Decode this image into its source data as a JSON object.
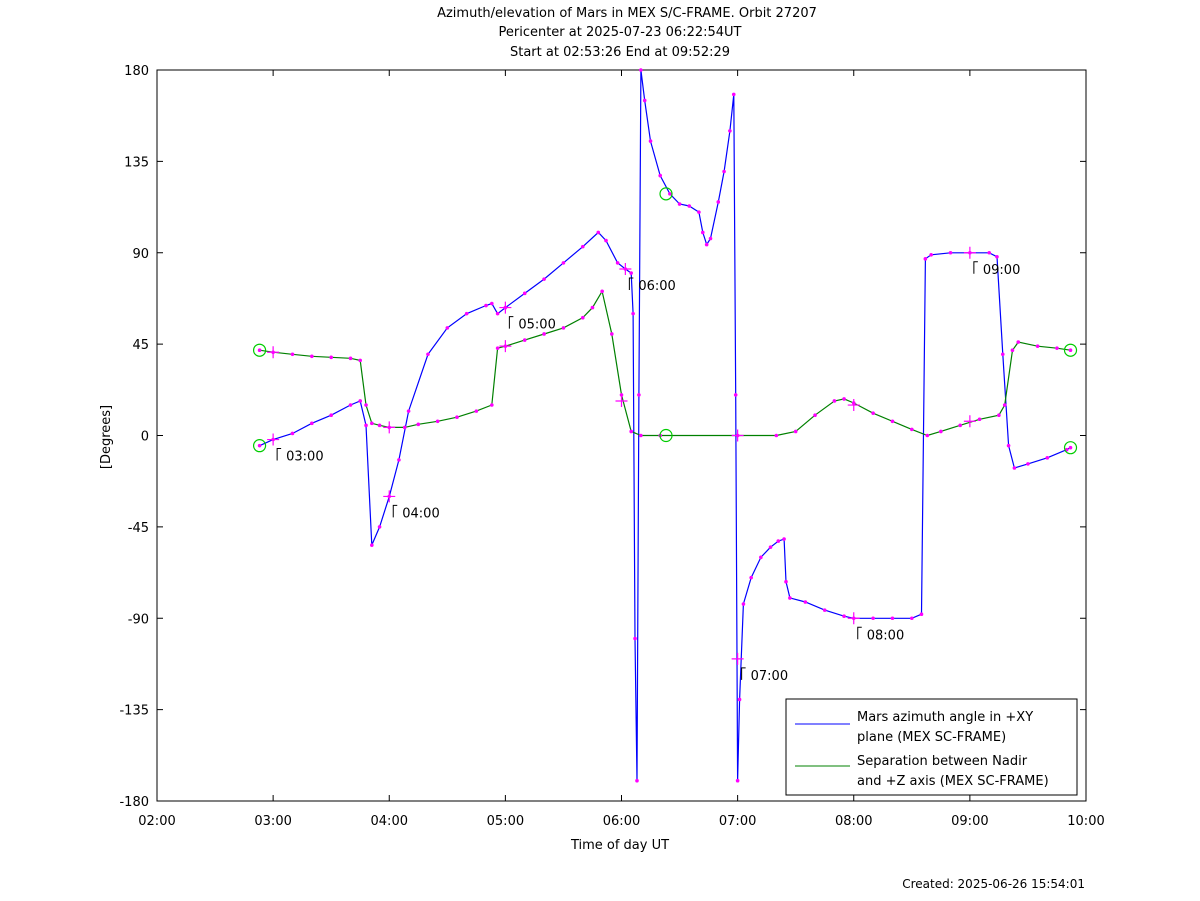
{
  "chart_data": {
    "type": "line",
    "title_lines": [
      "Azimuth/elevation of Mars in MEX S/C-FRAME.  Orbit 27207",
      "Pericenter at 2025-07-23 06:22:54UT",
      "Start at 02:53:26 End at 09:52:29"
    ],
    "xlabel": "Time of day UT",
    "ylabel": "[Degrees]",
    "footer": "Created: 2025-06-26 15:54:01",
    "xlim": [
      "02:00",
      "10:00"
    ],
    "ylim": [
      -180,
      180
    ],
    "xticks": [
      "02:00",
      "03:00",
      "04:00",
      "05:00",
      "06:00",
      "07:00",
      "08:00",
      "09:00",
      "10:00"
    ],
    "yticks": [
      180,
      135,
      90,
      45,
      0,
      -45,
      -90,
      -135,
      -180
    ],
    "colors": {
      "series1": "#0000ff",
      "series2": "#008000",
      "marker": "#ff00ff",
      "circle": "#00cc00"
    },
    "legend_position": "bottom-right",
    "series": [
      {
        "name": "Mars azimuth angle in +XY plane (MEX SC-FRAME)",
        "legend_lines": [
          "Mars azimuth angle in +XY",
          "plane (MEX SC-FRAME)"
        ],
        "points": [
          [
            "02:53",
            -5
          ],
          [
            "03:00",
            -2
          ],
          [
            "03:10",
            1
          ],
          [
            "03:20",
            6
          ],
          [
            "03:30",
            10
          ],
          [
            "03:40",
            15
          ],
          [
            "03:45",
            17
          ],
          [
            "03:48",
            5
          ],
          [
            "03:51",
            -54
          ],
          [
            "03:55",
            -45
          ],
          [
            "04:00",
            -30
          ],
          [
            "04:05",
            -12
          ],
          [
            "04:10",
            12
          ],
          [
            "04:20",
            40
          ],
          [
            "04:30",
            53
          ],
          [
            "04:40",
            60
          ],
          [
            "04:50",
            64
          ],
          [
            "04:53",
            65
          ],
          [
            "04:56",
            60
          ],
          [
            "05:00",
            63
          ],
          [
            "05:10",
            70
          ],
          [
            "05:20",
            77
          ],
          [
            "05:30",
            85
          ],
          [
            "05:40",
            93
          ],
          [
            "05:48",
            100
          ],
          [
            "05:52",
            96
          ],
          [
            "05:58",
            85
          ],
          [
            "06:02",
            82
          ],
          [
            "06:05",
            80
          ],
          [
            "06:06",
            60
          ],
          [
            "06:07",
            -100
          ],
          [
            "06:08",
            -170
          ],
          [
            "06:09",
            20
          ],
          [
            "06:10",
            180
          ],
          [
            "06:12",
            165
          ],
          [
            "06:15",
            145
          ],
          [
            "06:20",
            128
          ],
          [
            "06:25",
            119
          ],
          [
            "06:30",
            114
          ],
          [
            "06:35",
            113
          ],
          [
            "06:40",
            110
          ],
          [
            "06:42",
            100
          ],
          [
            "06:44",
            94
          ],
          [
            "06:46",
            97
          ],
          [
            "06:50",
            115
          ],
          [
            "06:53",
            130
          ],
          [
            "06:56",
            150
          ],
          [
            "06:58",
            168
          ],
          [
            "06:59",
            20
          ],
          [
            "07:00",
            -170
          ],
          [
            "07:01",
            -130
          ],
          [
            "07:03",
            -83
          ],
          [
            "07:07",
            -70
          ],
          [
            "07:12",
            -60
          ],
          [
            "07:17",
            -55
          ],
          [
            "07:21",
            -52
          ],
          [
            "07:24",
            -51
          ],
          [
            "07:25",
            -72
          ],
          [
            "07:27",
            -80
          ],
          [
            "07:35",
            -82
          ],
          [
            "07:45",
            -86
          ],
          [
            "07:55",
            -89
          ],
          [
            "08:00",
            -90
          ],
          [
            "08:10",
            -90
          ],
          [
            "08:20",
            -90
          ],
          [
            "08:30",
            -90
          ],
          [
            "08:35",
            -88
          ],
          [
            "08:37",
            87
          ],
          [
            "08:40",
            89
          ],
          [
            "08:50",
            90
          ],
          [
            "09:00",
            90
          ],
          [
            "09:10",
            90
          ],
          [
            "09:14",
            88
          ],
          [
            "09:17",
            40
          ],
          [
            "09:20",
            -5
          ],
          [
            "09:23",
            -16
          ],
          [
            "09:30",
            -14
          ],
          [
            "09:40",
            -11
          ],
          [
            "09:50",
            -7
          ],
          [
            "09:52",
            -6
          ]
        ]
      },
      {
        "name": "Separation between Nadir and +Z axis (MEX SC-FRAME)",
        "legend_lines": [
          "Separation between Nadir",
          "and +Z axis (MEX SC-FRAME)"
        ],
        "points": [
          [
            "02:53",
            42
          ],
          [
            "03:00",
            41
          ],
          [
            "03:10",
            40
          ],
          [
            "03:20",
            39
          ],
          [
            "03:30",
            38.5
          ],
          [
            "03:40",
            38
          ],
          [
            "03:45",
            37
          ],
          [
            "03:48",
            15
          ],
          [
            "03:51",
            6
          ],
          [
            "03:55",
            5
          ],
          [
            "04:00",
            4
          ],
          [
            "04:08",
            4
          ],
          [
            "04:15",
            5.5
          ],
          [
            "04:25",
            7
          ],
          [
            "04:35",
            9
          ],
          [
            "04:45",
            12
          ],
          [
            "04:53",
            15
          ],
          [
            "04:56",
            43
          ],
          [
            "05:00",
            44
          ],
          [
            "05:10",
            47
          ],
          [
            "05:20",
            50
          ],
          [
            "05:30",
            53
          ],
          [
            "05:40",
            58
          ],
          [
            "05:45",
            63
          ],
          [
            "05:50",
            71
          ],
          [
            "05:55",
            50
          ],
          [
            "06:00",
            20
          ],
          [
            "06:05",
            2
          ],
          [
            "06:10",
            0
          ],
          [
            "06:20",
            0
          ],
          [
            "07:00",
            0
          ],
          [
            "07:20",
            0
          ],
          [
            "07:30",
            2
          ],
          [
            "07:40",
            10
          ],
          [
            "07:50",
            17
          ],
          [
            "07:55",
            18
          ],
          [
            "08:00",
            16
          ],
          [
            "08:10",
            11
          ],
          [
            "08:20",
            7
          ],
          [
            "08:30",
            3
          ],
          [
            "08:38",
            0
          ],
          [
            "08:45",
            2
          ],
          [
            "08:55",
            5
          ],
          [
            "09:05",
            8
          ],
          [
            "09:15",
            10
          ],
          [
            "09:18",
            15
          ],
          [
            "09:22",
            42
          ],
          [
            "09:25",
            46
          ],
          [
            "09:35",
            44
          ],
          [
            "09:45",
            43
          ],
          [
            "09:52",
            42
          ]
        ]
      }
    ],
    "time_labels": [
      {
        "text": "03:00",
        "at": [
          "03:00",
          -2
        ]
      },
      {
        "text": "04:00",
        "at": [
          "04:00",
          -30
        ]
      },
      {
        "text": "05:00",
        "at": [
          "05:00",
          63
        ]
      },
      {
        "text": "06:00",
        "at": [
          "06:02",
          82
        ]
      },
      {
        "text": "07:00",
        "at": [
          "07:00",
          -110
        ]
      },
      {
        "text": "08:00",
        "at": [
          "08:00",
          -90
        ]
      },
      {
        "text": "09:00",
        "at": [
          "09:00",
          90
        ]
      }
    ],
    "hour_crosses": [
      [
        "03:00",
        -2
      ],
      [
        "04:00",
        -30
      ],
      [
        "05:00",
        63
      ],
      [
        "06:02",
        82
      ],
      [
        "07:00",
        -110
      ],
      [
        "08:00",
        -90
      ],
      [
        "09:00",
        90
      ],
      [
        "03:00",
        41
      ],
      [
        "04:00",
        4
      ],
      [
        "05:00",
        44
      ],
      [
        "06:00",
        17
      ],
      [
        "07:00",
        0
      ],
      [
        "08:00",
        15
      ],
      [
        "09:00",
        7
      ]
    ],
    "circles": [
      [
        "02:53",
        -5
      ],
      [
        "02:53",
        42
      ],
      [
        "06:23",
        119
      ],
      [
        "06:23",
        0
      ],
      [
        "09:52",
        -6
      ],
      [
        "09:52",
        42
      ]
    ]
  }
}
